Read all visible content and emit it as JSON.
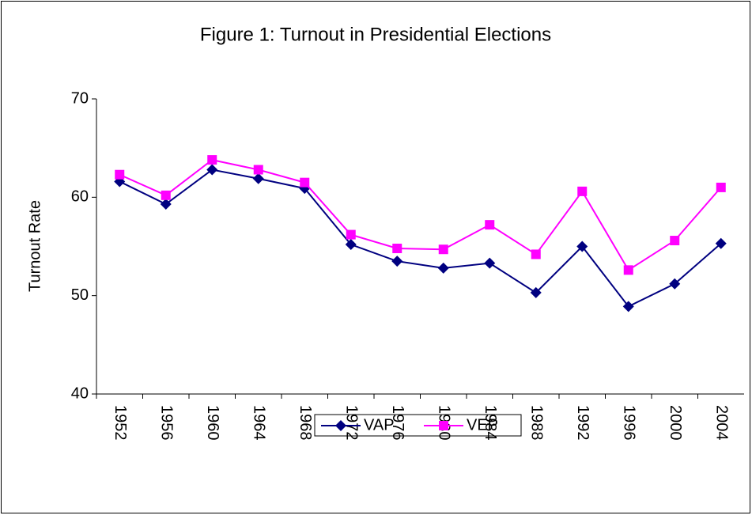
{
  "chart_data": {
    "type": "line",
    "title": "Figure 1: Turnout in Presidential Elections",
    "y_label": "Turnout Rate",
    "categories": [
      "1952",
      "1956",
      "1960",
      "1964",
      "1968",
      "1972",
      "1976",
      "1980",
      "1984",
      "1988",
      "1992",
      "1996",
      "2000",
      "2004"
    ],
    "series": [
      {
        "name": "VAP",
        "color": "#000080",
        "marker": "diamond",
        "values": [
          61.6,
          59.3,
          62.8,
          61.9,
          60.9,
          55.2,
          53.5,
          52.8,
          53.3,
          50.3,
          55.0,
          48.9,
          51.2,
          55.3
        ]
      },
      {
        "name": "VEP",
        "color": "#FF00FF",
        "marker": "square",
        "values": [
          62.3,
          60.2,
          63.8,
          62.8,
          61.5,
          56.2,
          54.8,
          54.7,
          57.2,
          54.2,
          60.6,
          52.6,
          55.6,
          61.0
        ]
      }
    ],
    "ylim": [
      40,
      70
    ],
    "yticks": [
      40,
      50,
      60,
      70
    ],
    "grid": false
  }
}
